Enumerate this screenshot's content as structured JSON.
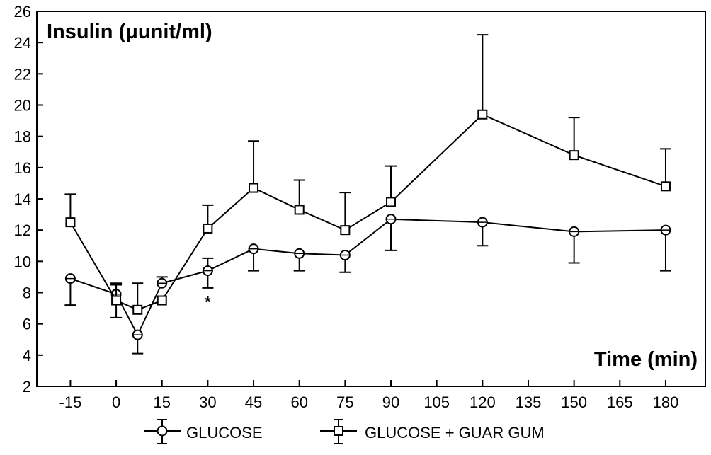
{
  "chart_data": {
    "type": "line",
    "ylabel": "Insulin (μunit/ml)",
    "xlabel": "Time (min)",
    "x_ticks": [
      -15,
      0,
      15,
      30,
      45,
      60,
      75,
      90,
      105,
      120,
      135,
      150,
      165,
      180
    ],
    "y_ticks": [
      2,
      4,
      6,
      8,
      10,
      12,
      14,
      16,
      18,
      20,
      22,
      24,
      26
    ],
    "ylim": [
      2,
      26
    ],
    "xlim": [
      -26,
      193
    ],
    "grid": false,
    "legend_position": "bottom",
    "series": [
      {
        "name": "GLUCOSE",
        "marker": "diamond",
        "x": [
          -15,
          0,
          7,
          15,
          30,
          45,
          60,
          75,
          90,
          120,
          150,
          180
        ],
        "y": [
          8.9,
          7.9,
          5.3,
          8.6,
          9.4,
          10.8,
          10.5,
          10.4,
          12.7,
          12.5,
          11.9,
          12.0
        ],
        "err_upper": [
          null,
          8.5,
          null,
          9.0,
          10.2,
          null,
          null,
          null,
          null,
          null,
          null,
          null
        ],
        "err_lower": [
          7.2,
          6.4,
          4.1,
          null,
          8.3,
          9.4,
          9.4,
          9.3,
          10.7,
          11.0,
          9.9,
          9.4
        ]
      },
      {
        "name": "GLUCOSE + GUAR GUM",
        "marker": "square",
        "x": [
          -15,
          0,
          7,
          15,
          30,
          45,
          60,
          75,
          90,
          120,
          150,
          180
        ],
        "y": [
          12.5,
          7.5,
          6.9,
          7.5,
          12.1,
          14.7,
          13.3,
          12.0,
          13.8,
          19.4,
          16.8,
          14.8
        ],
        "err_upper": [
          14.3,
          8.6,
          8.6,
          null,
          13.6,
          17.7,
          15.2,
          14.4,
          16.1,
          24.5,
          19.2,
          17.2
        ],
        "err_lower": [
          null,
          null,
          null,
          null,
          null,
          null,
          null,
          null,
          null,
          null,
          null,
          null
        ]
      }
    ],
    "annotations": [
      {
        "text": "*",
        "x": 30,
        "y": 7.6
      }
    ]
  }
}
